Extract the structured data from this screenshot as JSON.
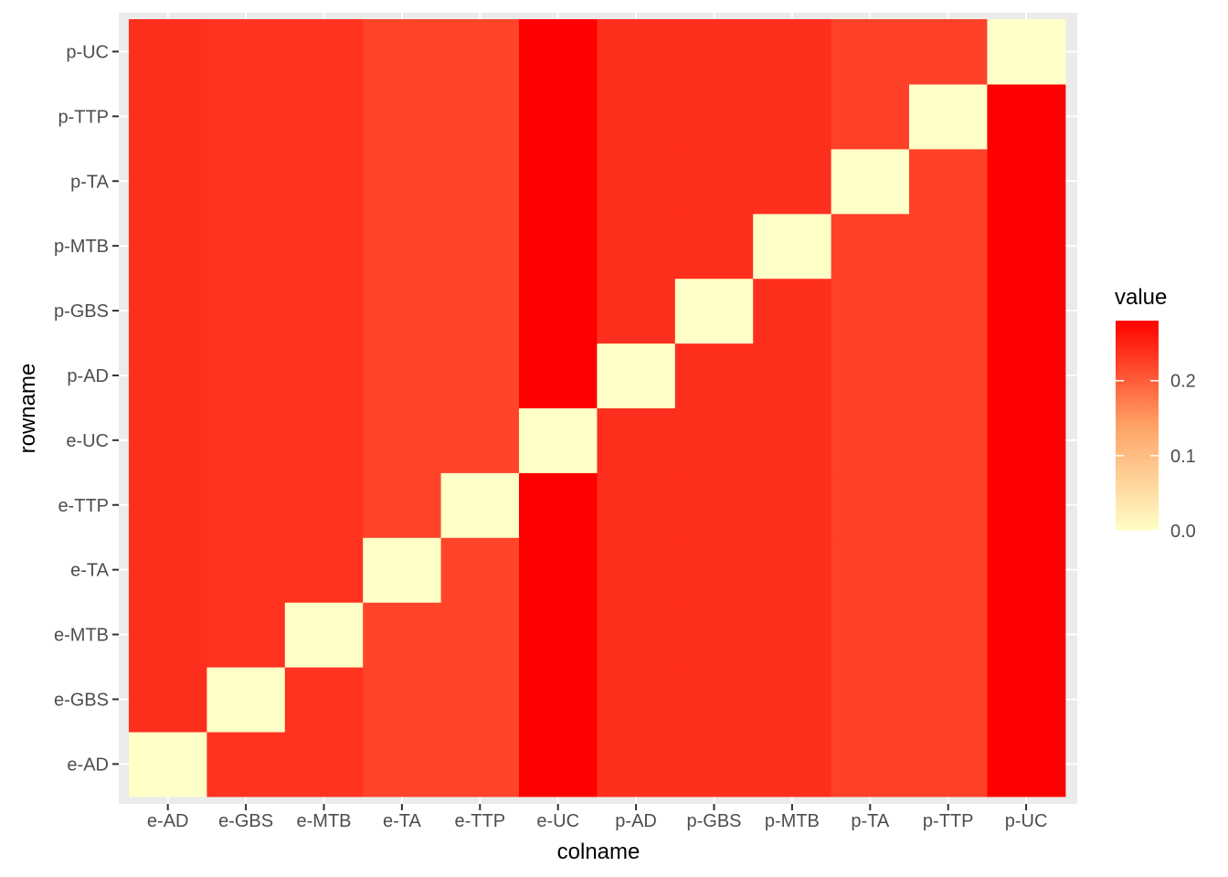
{
  "chart_data": {
    "type": "heatmap",
    "title": "",
    "xlabel": "colname",
    "ylabel": "rowname",
    "columns": [
      "e-AD",
      "e-GBS",
      "e-MTB",
      "e-TA",
      "e-TTP",
      "e-UC",
      "p-AD",
      "p-GBS",
      "p-MTB",
      "p-TA",
      "p-TTP",
      "p-UC"
    ],
    "rows": [
      "e-AD",
      "e-GBS",
      "e-MTB",
      "e-TA",
      "e-TTP",
      "e-UC",
      "p-AD",
      "p-GBS",
      "p-MTB",
      "p-TA",
      "p-TTP",
      "p-UC"
    ],
    "values": [
      [
        0.0,
        0.236,
        0.236,
        0.222,
        0.222,
        0.28,
        0.24,
        0.24,
        0.24,
        0.224,
        0.224,
        0.28
      ],
      [
        0.24,
        0.0,
        0.236,
        0.222,
        0.222,
        0.28,
        0.24,
        0.24,
        0.24,
        0.224,
        0.224,
        0.28
      ],
      [
        0.24,
        0.236,
        0.0,
        0.222,
        0.222,
        0.28,
        0.24,
        0.24,
        0.24,
        0.224,
        0.224,
        0.28
      ],
      [
        0.24,
        0.236,
        0.236,
        0.0,
        0.222,
        0.28,
        0.24,
        0.24,
        0.24,
        0.224,
        0.224,
        0.28
      ],
      [
        0.24,
        0.236,
        0.236,
        0.222,
        0.0,
        0.28,
        0.24,
        0.24,
        0.24,
        0.224,
        0.224,
        0.28
      ],
      [
        0.24,
        0.236,
        0.236,
        0.222,
        0.222,
        0.0,
        0.24,
        0.24,
        0.24,
        0.224,
        0.224,
        0.28
      ],
      [
        0.24,
        0.236,
        0.236,
        0.222,
        0.222,
        0.28,
        0.0,
        0.24,
        0.24,
        0.224,
        0.224,
        0.28
      ],
      [
        0.24,
        0.236,
        0.236,
        0.222,
        0.222,
        0.28,
        0.24,
        0.0,
        0.24,
        0.224,
        0.224,
        0.28
      ],
      [
        0.24,
        0.236,
        0.236,
        0.222,
        0.222,
        0.28,
        0.24,
        0.24,
        0.0,
        0.224,
        0.224,
        0.28
      ],
      [
        0.24,
        0.236,
        0.236,
        0.222,
        0.222,
        0.28,
        0.24,
        0.24,
        0.24,
        0.0,
        0.224,
        0.28
      ],
      [
        0.24,
        0.236,
        0.236,
        0.222,
        0.222,
        0.28,
        0.24,
        0.24,
        0.24,
        0.224,
        0.0,
        0.28
      ],
      [
        0.24,
        0.236,
        0.236,
        0.222,
        0.222,
        0.28,
        0.24,
        0.24,
        0.24,
        0.224,
        0.224,
        0.0
      ]
    ],
    "value_range": [
      0,
      0.28
    ],
    "colorscale": {
      "low": "#FFFFC8",
      "mid": "#FFA366",
      "high": "#FF0000"
    },
    "legend": {
      "title": "value",
      "placement": "right",
      "ticks": [
        0.0,
        0.1,
        0.2
      ],
      "tick_labels": [
        "0.0",
        "0.1",
        "0.2"
      ]
    },
    "grid": true,
    "panel_background": "#EBEBEB"
  }
}
